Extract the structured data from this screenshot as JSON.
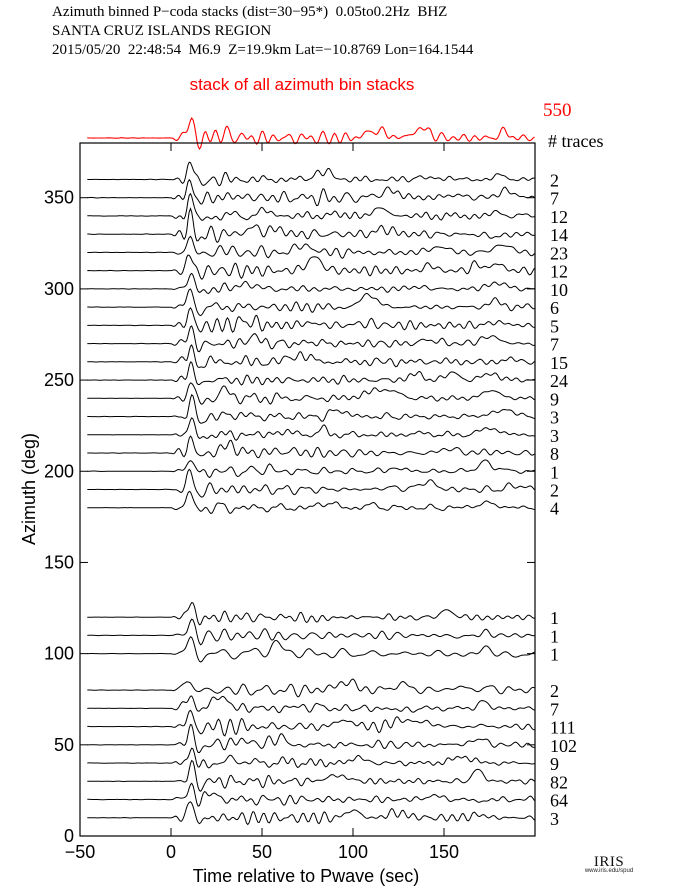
{
  "header": {
    "line1": "Azimuth binned P−coda stacks (dist=30−95*)  0.05to0.2Hz  BHZ",
    "line2": "SANTA CRUZ ISLANDS REGION",
    "line3": "2015/05/20  22:48:54  M6.9  Z=19.9km Lat=−10.8769 Lon=164.1544"
  },
  "summary_stack": {
    "label": "stack of all azimuth bin stacks",
    "trace_count": "550",
    "color": "#ff0000"
  },
  "traces_header": "# traces",
  "logo": {
    "text": "IRIS",
    "subtext": "www.iris.edu/spud"
  },
  "chart_data": {
    "type": "line",
    "title": "",
    "xlabel": "Time relative to Pwave (sec)",
    "ylabel": "Azimuth (deg)",
    "xlim": [
      -50,
      200
    ],
    "ylim": [
      0,
      380
    ],
    "xticks": [
      -50,
      0,
      50,
      100,
      150
    ],
    "yticks": [
      0,
      50,
      100,
      150,
      200,
      250,
      300,
      350
    ],
    "grid": false,
    "trace_color": "#000000",
    "series": [
      {
        "azimuth": 360,
        "count": "2"
      },
      {
        "azimuth": 350,
        "count": "7"
      },
      {
        "azimuth": 340,
        "count": "12"
      },
      {
        "azimuth": 330,
        "count": "14"
      },
      {
        "azimuth": 320,
        "count": "23"
      },
      {
        "azimuth": 310,
        "count": "12"
      },
      {
        "azimuth": 300,
        "count": "10"
      },
      {
        "azimuth": 290,
        "count": "6"
      },
      {
        "azimuth": 280,
        "count": "5"
      },
      {
        "azimuth": 270,
        "count": "7"
      },
      {
        "azimuth": 260,
        "count": "15"
      },
      {
        "azimuth": 250,
        "count": "24"
      },
      {
        "azimuth": 240,
        "count": "9"
      },
      {
        "azimuth": 230,
        "count": "3"
      },
      {
        "azimuth": 220,
        "count": "3"
      },
      {
        "azimuth": 210,
        "count": "8"
      },
      {
        "azimuth": 200,
        "count": "1"
      },
      {
        "azimuth": 190,
        "count": "2"
      },
      {
        "azimuth": 180,
        "count": "4"
      },
      {
        "azimuth": 120,
        "count": "1"
      },
      {
        "azimuth": 110,
        "count": "1"
      },
      {
        "azimuth": 100,
        "count": "1"
      },
      {
        "azimuth": 80,
        "count": "2"
      },
      {
        "azimuth": 70,
        "count": "7"
      },
      {
        "azimuth": 60,
        "count": "111"
      },
      {
        "azimuth": 50,
        "count": "102"
      },
      {
        "azimuth": 40,
        "count": "9"
      },
      {
        "azimuth": 30,
        "count": "82"
      },
      {
        "azimuth": 20,
        "count": "64"
      },
      {
        "azimuth": 10,
        "count": "3"
      }
    ]
  }
}
